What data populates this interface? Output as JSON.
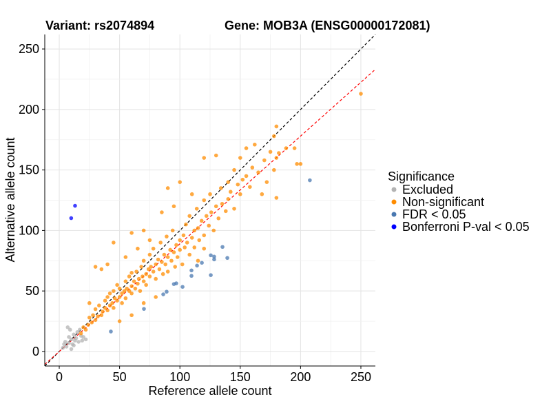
{
  "chart_data": {
    "type": "scatter",
    "title_left": "Variant: rs2074894",
    "title_right": "Gene: MOB3A (ENSG00000172081)",
    "xlabel": "Reference allele count",
    "ylabel": "Alternative allele count",
    "xlim": [
      -12,
      262
    ],
    "ylim": [
      -12,
      262
    ],
    "xticks": [
      0,
      50,
      100,
      150,
      200,
      250
    ],
    "yticks": [
      0,
      50,
      100,
      150,
      200,
      250
    ],
    "grid": true,
    "reference_lines": [
      {
        "name": "identity",
        "slope": 1.0,
        "intercept": 0,
        "color": "#000000",
        "style": "dashed"
      },
      {
        "name": "fit",
        "slope": 0.89,
        "intercept": 0,
        "color": "#ff0000",
        "style": "dashed"
      }
    ],
    "legend": {
      "title": "Significance",
      "placement": "right",
      "entries": [
        {
          "label": "Excluded",
          "color": "#b3b3b3"
        },
        {
          "label": "Non-significant",
          "color": "#ff8c00"
        },
        {
          "label": "FDR < 0.05",
          "color": "#4a78b0"
        },
        {
          "label": "Bonferroni P-val < 0.05",
          "color": "#0000ff"
        }
      ]
    },
    "series": [
      {
        "name": "Excluded",
        "color": "#b3b3b3",
        "points": [
          [
            3,
            3
          ],
          [
            5,
            8
          ],
          [
            6,
            4
          ],
          [
            8,
            12
          ],
          [
            9,
            18
          ],
          [
            10,
            10
          ],
          [
            11,
            6
          ],
          [
            12,
            14
          ],
          [
            13,
            9
          ],
          [
            14,
            11
          ],
          [
            15,
            16
          ],
          [
            16,
            8
          ],
          [
            18,
            13
          ],
          [
            20,
            12
          ],
          [
            22,
            10
          ],
          [
            7,
            20
          ],
          [
            4,
            6
          ],
          [
            10,
            2
          ],
          [
            12,
            5
          ],
          [
            17,
            18
          ],
          [
            19,
            9
          ],
          [
            8,
            7
          ]
        ]
      },
      {
        "name": "Non-significant",
        "color": "#ff8c00",
        "points": [
          [
            18,
            15
          ],
          [
            20,
            20
          ],
          [
            22,
            18
          ],
          [
            24,
            22
          ],
          [
            25,
            28
          ],
          [
            27,
            24
          ],
          [
            28,
            30
          ],
          [
            30,
            26
          ],
          [
            30,
            35
          ],
          [
            32,
            29
          ],
          [
            33,
            38
          ],
          [
            35,
            30
          ],
          [
            36,
            33
          ],
          [
            38,
            36
          ],
          [
            38,
            42
          ],
          [
            40,
            34
          ],
          [
            40,
            45
          ],
          [
            42,
            38
          ],
          [
            42,
            48
          ],
          [
            44,
            40
          ],
          [
            45,
            36
          ],
          [
            45,
            50
          ],
          [
            46,
            44
          ],
          [
            48,
            42
          ],
          [
            48,
            55
          ],
          [
            50,
            45
          ],
          [
            50,
            52
          ],
          [
            52,
            48
          ],
          [
            52,
            40
          ],
          [
            54,
            50
          ],
          [
            55,
            58
          ],
          [
            55,
            44
          ],
          [
            56,
            52
          ],
          [
            58,
            50
          ],
          [
            58,
            62
          ],
          [
            60,
            54
          ],
          [
            60,
            48
          ],
          [
            60,
            65
          ],
          [
            62,
            58
          ],
          [
            63,
            52
          ],
          [
            64,
            66
          ],
          [
            65,
            56
          ],
          [
            66,
            60
          ],
          [
            67,
            50
          ],
          [
            68,
            70
          ],
          [
            69,
            62
          ],
          [
            70,
            58
          ],
          [
            70,
            75
          ],
          [
            72,
            64
          ],
          [
            72,
            55
          ],
          [
            74,
            68
          ],
          [
            75,
            62
          ],
          [
            75,
            80
          ],
          [
            76,
            70
          ],
          [
            78,
            66
          ],
          [
            78,
            85
          ],
          [
            80,
            72
          ],
          [
            80,
            60
          ],
          [
            82,
            76
          ],
          [
            83,
            68
          ],
          [
            84,
            90
          ],
          [
            85,
            74
          ],
          [
            86,
            64
          ],
          [
            87,
            80
          ],
          [
            88,
            72
          ],
          [
            89,
            95
          ],
          [
            90,
            78
          ],
          [
            90,
            66
          ],
          [
            92,
            84
          ],
          [
            93,
            75
          ],
          [
            94,
            100
          ],
          [
            95,
            82
          ],
          [
            96,
            70
          ],
          [
            97,
            88
          ],
          [
            98,
            78
          ],
          [
            100,
            92
          ],
          [
            100,
            84
          ],
          [
            102,
            72
          ],
          [
            103,
            96
          ],
          [
            104,
            86
          ],
          [
            105,
            105
          ],
          [
            106,
            90
          ],
          [
            108,
            80
          ],
          [
            108,
            112
          ],
          [
            110,
            94
          ],
          [
            112,
            100
          ],
          [
            112,
            86
          ],
          [
            114,
            118
          ],
          [
            115,
            102
          ],
          [
            116,
            92
          ],
          [
            118,
            108
          ],
          [
            120,
            125
          ],
          [
            120,
            96
          ],
          [
            122,
            112
          ],
          [
            124,
            104
          ],
          [
            125,
            130
          ],
          [
            126,
            115
          ],
          [
            128,
            100
          ],
          [
            130,
            120
          ],
          [
            132,
            110
          ],
          [
            134,
            135
          ],
          [
            135,
            122
          ],
          [
            138,
            116
          ],
          [
            140,
            140
          ],
          [
            140,
            126
          ],
          [
            142,
            132
          ],
          [
            145,
            150
          ],
          [
            145,
            118
          ],
          [
            148,
            138
          ],
          [
            150,
            130
          ],
          [
            150,
            160
          ],
          [
            152,
            142
          ],
          [
            155,
            145
          ],
          [
            155,
            168
          ],
          [
            158,
            136
          ],
          [
            160,
            152
          ],
          [
            162,
            171
          ],
          [
            165,
            148
          ],
          [
            168,
            130
          ],
          [
            170,
            158
          ],
          [
            172,
            140
          ],
          [
            175,
            165
          ],
          [
            178,
            178
          ],
          [
            178,
            150
          ],
          [
            180,
            186
          ],
          [
            180,
            160
          ],
          [
            182,
            164
          ],
          [
            188,
            168
          ],
          [
            195,
            168
          ],
          [
            197,
            155
          ],
          [
            200,
            155
          ],
          [
            180,
            127
          ],
          [
            250,
            213
          ],
          [
            30,
            70
          ],
          [
            35,
            68
          ],
          [
            40,
            72
          ],
          [
            45,
            90
          ],
          [
            60,
            98
          ],
          [
            70,
            100
          ],
          [
            85,
            115
          ],
          [
            95,
            120
          ],
          [
            110,
            130
          ],
          [
            100,
            140
          ],
          [
            90,
            135
          ],
          [
            120,
            160
          ],
          [
            130,
            162
          ],
          [
            60,
            30
          ],
          [
            70,
            40
          ],
          [
            80,
            45
          ],
          [
            50,
            25
          ],
          [
            25,
            40
          ],
          [
            65,
            85
          ],
          [
            75,
            92
          ],
          [
            55,
            78
          ],
          [
            115,
            75
          ],
          [
            120,
            85
          ]
        ]
      },
      {
        "name": "FDR < 0.05",
        "color": "#4a78b0",
        "points": [
          [
            207.7,
            141.5
          ],
          [
            135.3,
            86.4
          ],
          [
            139.3,
            77.3
          ],
          [
            125.6,
            79.5
          ],
          [
            128.4,
            78.4
          ],
          [
            128.4,
            76.1
          ],
          [
            118.2,
            73.3
          ],
          [
            114.2,
            71
          ],
          [
            109.6,
            67
          ],
          [
            109.6,
            62.5
          ],
          [
            125.6,
            63.1
          ],
          [
            102.2,
            53.4
          ],
          [
            95,
            55.7
          ],
          [
            97,
            56.3
          ],
          [
            89,
            49.4
          ],
          [
            86.2,
            47.2
          ],
          [
            70.2,
            35.2
          ],
          [
            42.8,
            16.5
          ]
        ]
      },
      {
        "name": "Bonferroni P-val < 0.05",
        "color": "#0000ff",
        "points": [
          [
            13.1,
            120.4
          ],
          [
            9.9,
            110.2
          ]
        ]
      }
    ]
  }
}
